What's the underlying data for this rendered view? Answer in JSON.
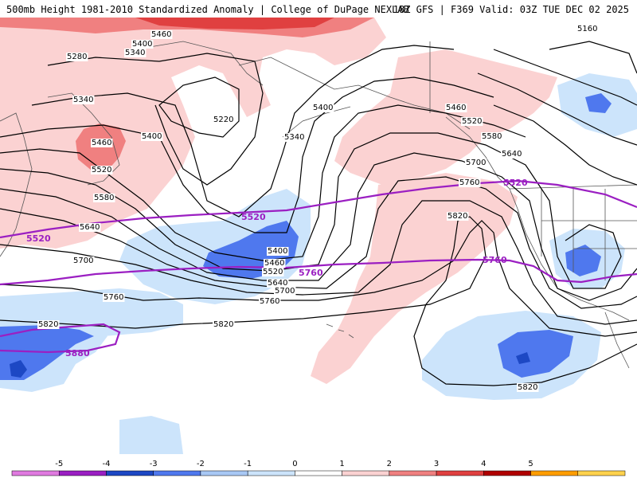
{
  "header": {
    "title": "500mb Height 1981-2010 Standardized Anomaly | College of DuPage NEXLAB",
    "run_info": "18Z GFS | F369 Valid: 03Z TUE DEC 02 2025"
  },
  "colors": {
    "pos1": "#fbd2d2",
    "pos2": "#f08080",
    "pos3": "#e04040",
    "pos4": "#b00000",
    "neg1": "#cce4fb",
    "neg2": "#4f78ee",
    "neg3": "#1d48c4",
    "contour": "#000000",
    "purple": "#9b1fc2",
    "map_lines": "#555555"
  },
  "contour_labels": {
    "c5160": "5160",
    "c5220": "5220",
    "c5280": "5280",
    "c5340a": "5340",
    "c5340b": "5340",
    "c5340c": "5340",
    "c5400a": "5400",
    "c5400b": "5400",
    "c5400c": "5400",
    "c5400d": "5400",
    "c5460a": "5460",
    "c5460b": "5460",
    "c5460c": "5460",
    "c5460d": "5460",
    "c5520a": "5520",
    "c5520b": "5520",
    "c5520c": "5520",
    "c5580a": "5580",
    "c5580b": "5580",
    "c5640a": "5640",
    "c5640b": "5640",
    "c5640c": "5640",
    "c5700a": "5700",
    "c5700b": "5700",
    "c5700c": "5700",
    "c5760a": "5760",
    "c5760b": "5760",
    "c5760c": "5760",
    "c5820a": "5820",
    "c5820b": "5820",
    "c5820c": "5820",
    "c5820d": "5820"
  },
  "climo_labels": {
    "p5520a": "5520",
    "p5520b": "5520",
    "p5520c": "5520",
    "p5760a": "5760",
    "p5760b": "5760",
    "p5880": "5880"
  },
  "scale": {
    "ticks": [
      "-5",
      "-4",
      "-3",
      "-2",
      "-1",
      "0",
      "1",
      "2",
      "3",
      "4",
      "5"
    ],
    "colors": [
      "#e07ae0",
      "#9a1fc2",
      "#1d48c4",
      "#4f78ee",
      "#a8c8f5",
      "#cce4fb",
      "#ffffff",
      "#fbd2d2",
      "#f08080",
      "#e04040",
      "#b00000",
      "#ff9d00",
      "#ffd24d"
    ]
  }
}
